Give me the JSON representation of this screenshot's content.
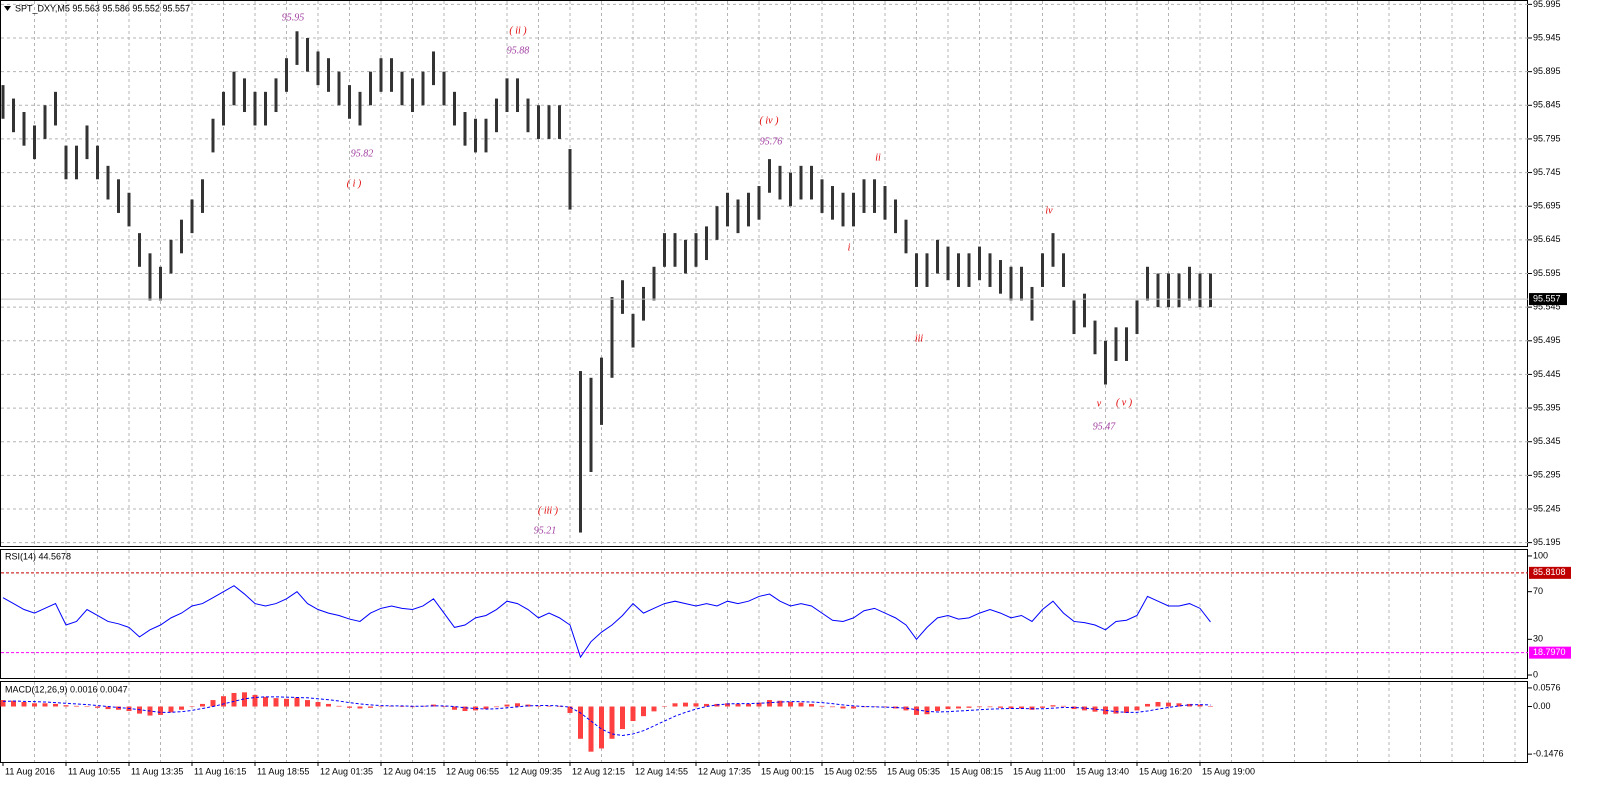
{
  "chart_data": [
    {
      "type": "ohlc",
      "title": "SPT_DXY,M5  95.563 95.586 95.552 95.557",
      "color": "#333333",
      "grid": true,
      "ylim": [
        95.19,
        96.0
      ],
      "yticks": [
        95.995,
        95.945,
        95.895,
        95.845,
        95.795,
        95.745,
        95.695,
        95.645,
        95.595,
        95.545,
        95.495,
        95.445,
        95.395,
        95.345,
        95.295,
        95.245,
        95.195
      ],
      "current_price": 95.557,
      "categories": [
        "11 Aug 2016",
        null,
        null,
        null,
        null,
        null,
        "11 Aug 10:55",
        null,
        null,
        null,
        null,
        null,
        "11 Aug 13:35",
        null,
        null,
        null,
        null,
        null,
        "11 Aug 16:15",
        null,
        null,
        null,
        null,
        null,
        "11 Aug 18:55",
        null,
        null,
        null,
        null,
        null,
        "12 Aug 01:35",
        null,
        null,
        null,
        null,
        null,
        "12 Aug 04:15",
        null,
        null,
        null,
        null,
        null,
        "12 Aug 06:55",
        null,
        null,
        null,
        null,
        null,
        "12 Aug 09:35",
        null,
        null,
        null,
        null,
        null,
        "12 Aug 12:15",
        null,
        null,
        null,
        null,
        null,
        "12 Aug 14:55",
        null,
        null,
        null,
        null,
        null,
        "12 Aug 17:35",
        null,
        null,
        null,
        null,
        null,
        "15 Aug 00:15",
        null,
        null,
        null,
        null,
        null,
        "15 Aug 02:55",
        null,
        null,
        null,
        null,
        null,
        "15 Aug 05:35",
        null,
        null,
        null,
        null,
        null,
        "15 Aug 08:15",
        null,
        null,
        null,
        null,
        null,
        "15 Aug 11:00",
        null,
        null,
        null,
        null,
        null,
        "15 Aug 13:40",
        null,
        null,
        null,
        null,
        null,
        "15 Aug 16:20",
        null,
        null,
        null,
        null,
        null,
        "15 Aug 19:00",
        null
      ],
      "high": [
        95.875,
        95.855,
        95.835,
        95.815,
        95.845,
        95.865,
        95.785,
        95.785,
        95.815,
        95.785,
        95.755,
        95.735,
        95.715,
        95.655,
        95.625,
        95.605,
        95.645,
        95.675,
        95.705,
        95.735,
        95.825,
        95.865,
        95.895,
        95.885,
        95.865,
        95.865,
        95.885,
        95.915,
        95.955,
        95.945,
        95.925,
        95.915,
        95.895,
        95.875,
        95.865,
        95.895,
        95.915,
        95.915,
        95.895,
        95.885,
        95.895,
        95.925,
        95.895,
        95.865,
        95.835,
        95.825,
        95.825,
        95.855,
        95.885,
        95.885,
        95.855,
        95.845,
        95.845,
        95.845,
        95.78,
        95.45,
        95.44,
        95.47,
        95.56,
        95.585,
        95.535,
        95.575,
        95.605,
        95.655,
        95.655,
        95.645,
        95.655,
        95.665,
        95.695,
        95.715,
        95.705,
        95.715,
        95.725,
        95.765,
        95.755,
        95.745,
        95.755,
        95.755,
        95.735,
        95.725,
        95.715,
        95.715,
        95.735,
        95.735,
        95.725,
        95.705,
        95.675,
        95.625,
        95.625,
        95.645,
        95.635,
        95.625,
        95.625,
        95.635,
        95.625,
        95.615,
        95.605,
        95.605,
        95.575,
        95.625,
        95.655,
        95.625,
        95.555,
        95.565,
        95.525,
        95.495,
        95.515,
        95.515,
        95.555,
        95.605,
        95.595,
        95.595,
        95.595,
        95.605,
        95.595,
        95.595
      ],
      "low": [
        95.825,
        95.805,
        95.785,
        95.765,
        95.795,
        95.815,
        95.735,
        95.735,
        95.765,
        95.735,
        95.705,
        95.685,
        95.665,
        95.605,
        95.555,
        95.555,
        95.595,
        95.625,
        95.655,
        95.685,
        95.775,
        95.815,
        95.845,
        95.835,
        95.815,
        95.815,
        95.835,
        95.865,
        95.905,
        95.895,
        95.875,
        95.865,
        95.845,
        95.825,
        95.815,
        95.845,
        95.865,
        95.865,
        95.845,
        95.835,
        95.845,
        95.875,
        95.845,
        95.815,
        95.785,
        95.775,
        95.775,
        95.805,
        95.835,
        95.835,
        95.805,
        95.795,
        95.795,
        95.795,
        95.69,
        95.21,
        95.3,
        95.37,
        95.44,
        95.535,
        95.485,
        95.525,
        95.555,
        95.605,
        95.605,
        95.595,
        95.605,
        95.615,
        95.645,
        95.665,
        95.655,
        95.665,
        95.675,
        95.715,
        95.705,
        95.695,
        95.705,
        95.705,
        95.685,
        95.675,
        95.665,
        95.665,
        95.685,
        95.685,
        95.675,
        95.655,
        95.625,
        95.575,
        95.575,
        95.595,
        95.585,
        95.575,
        95.575,
        95.585,
        95.575,
        95.565,
        95.555,
        95.555,
        95.525,
        95.575,
        95.605,
        95.575,
        95.505,
        95.515,
        95.475,
        95.43,
        95.465,
        95.465,
        95.505,
        95.555,
        95.545,
        95.545,
        95.545,
        95.555,
        95.545,
        95.545
      ],
      "annotations": [
        {
          "text": "95.95",
          "color": "#a03ca0"
        },
        {
          "text": "( ii )",
          "color": "#e00000"
        },
        {
          "text": "95.88",
          "color": "#a03ca0"
        },
        {
          "text": "95.82",
          "color": "#a03ca0"
        },
        {
          "text": "( i )",
          "color": "#e00000"
        },
        {
          "text": "( iv )",
          "color": "#e00000"
        },
        {
          "text": "95.76",
          "color": "#a03ca0"
        },
        {
          "text": "ii",
          "color": "#e00000"
        },
        {
          "text": "i",
          "color": "#e00000"
        },
        {
          "text": "iv",
          "color": "#e00000"
        },
        {
          "text": "iii",
          "color": "#e00000"
        },
        {
          "text": "v",
          "color": "#e00000"
        },
        {
          "text": "( v )",
          "color": "#e00000"
        },
        {
          "text": "95.47",
          "color": "#a03ca0"
        },
        {
          "text": "( iii )",
          "color": "#e00000"
        },
        {
          "text": "95.21",
          "color": "#a03ca0"
        }
      ]
    },
    {
      "type": "line",
      "title": "RSI(14) 44.5678",
      "color": "#0000ff",
      "ylim": [
        -2.5,
        105
      ],
      "yticks": [
        100,
        70,
        30,
        0
      ],
      "levels": [
        85.8108,
        {
          "value": 18.797,
          "label": "18.7970"
        }
      ],
      "level_colors": [
        "#c00000",
        "#ff00ff"
      ],
      "values": [
        65,
        60,
        55,
        52,
        56,
        60,
        42,
        45,
        55,
        50,
        45,
        43,
        40,
        32,
        38,
        42,
        48,
        52,
        58,
        60,
        65,
        70,
        75,
        68,
        60,
        58,
        60,
        64,
        70,
        60,
        55,
        52,
        50,
        47,
        45,
        52,
        56,
        58,
        56,
        55,
        58,
        64,
        52,
        40,
        42,
        48,
        50,
        55,
        62,
        60,
        55,
        48,
        52,
        48,
        42,
        15,
        28,
        36,
        42,
        50,
        60,
        52,
        56,
        60,
        62,
        60,
        58,
        60,
        58,
        62,
        60,
        62,
        66,
        68,
        62,
        58,
        60,
        58,
        52,
        46,
        45,
        48,
        54,
        56,
        52,
        48,
        42,
        30,
        40,
        48,
        50,
        47,
        48,
        52,
        55,
        52,
        48,
        50,
        45,
        55,
        62,
        52,
        45,
        44,
        42,
        38,
        45,
        46,
        50,
        66,
        62,
        58,
        58,
        60,
        56,
        44.57
      ]
    },
    {
      "type": "macd",
      "title": "MACD(12,26,9) 0.0016 0.0047",
      "color": "#ff4040",
      "signal_color": "#0000ff",
      "ylim": [
        -0.172,
        0.076
      ],
      "yticks": [
        0.0576,
        {
          "value": 0,
          "label": "0.00"
        },
        -0.1476
      ],
      "values": [
        0.02,
        0.018,
        0.014,
        0.01,
        0.01,
        0.008,
        0.004,
        0.002,
        0,
        -0.004,
        -0.008,
        -0.01,
        -0.014,
        -0.022,
        -0.028,
        -0.026,
        -0.018,
        -0.01,
        0,
        0.008,
        0.02,
        0.032,
        0.042,
        0.044,
        0.036,
        0.03,
        0.026,
        0.024,
        0.028,
        0.02,
        0.014,
        0.008,
        0.002,
        -0.004,
        -0.006,
        -0.004,
        0,
        0.002,
        0,
        -0.002,
        0.002,
        0.006,
        0,
        -0.01,
        -0.014,
        -0.012,
        -0.008,
        -0.002,
        0.006,
        0.01,
        0.006,
        0.002,
        0.002,
        0,
        -0.02,
        -0.1,
        -0.14,
        -0.13,
        -0.1,
        -0.07,
        -0.045,
        -0.03,
        -0.015,
        0,
        0.01,
        0.012,
        0.01,
        0.008,
        0.008,
        0.01,
        0.008,
        0.008,
        0.012,
        0.02,
        0.018,
        0.014,
        0.012,
        0.008,
        0.002,
        -0.002,
        -0.006,
        -0.006,
        -0.002,
        0,
        -0.002,
        -0.006,
        -0.012,
        -0.026,
        -0.024,
        -0.014,
        -0.008,
        -0.006,
        -0.004,
        -0.002,
        -0.002,
        -0.004,
        -0.006,
        -0.006,
        -0.01,
        -0.004,
        0.004,
        0.002,
        -0.008,
        -0.012,
        -0.016,
        -0.024,
        -0.022,
        -0.02,
        -0.012,
        0.008,
        0.014,
        0.012,
        0.01,
        0.008,
        0.006,
        0.0016
      ],
      "signal": [
        0.016,
        0.017,
        0.016,
        0.015,
        0.014,
        0.012,
        0.01,
        0.008,
        0.006,
        0.003,
        0,
        -0.003,
        -0.006,
        -0.01,
        -0.014,
        -0.018,
        -0.018,
        -0.016,
        -0.012,
        -0.006,
        0,
        0.008,
        0.016,
        0.024,
        0.028,
        0.03,
        0.03,
        0.029,
        0.028,
        0.027,
        0.024,
        0.021,
        0.017,
        0.012,
        0.008,
        0.005,
        0.003,
        0.002,
        0.002,
        0.001,
        0.001,
        0.002,
        0.002,
        0,
        -0.004,
        -0.006,
        -0.008,
        -0.007,
        -0.004,
        -0.001,
        0.002,
        0.003,
        0.003,
        0.002,
        -0.002,
        -0.02,
        -0.045,
        -0.07,
        -0.085,
        -0.09,
        -0.085,
        -0.075,
        -0.06,
        -0.045,
        -0.03,
        -0.018,
        -0.008,
        0,
        0.005,
        0.008,
        0.009,
        0.009,
        0.01,
        0.012,
        0.014,
        0.015,
        0.015,
        0.014,
        0.012,
        0.009,
        0.005,
        0.002,
        0,
        -0.001,
        -0.002,
        -0.003,
        -0.005,
        -0.01,
        -0.015,
        -0.017,
        -0.016,
        -0.014,
        -0.012,
        -0.01,
        -0.008,
        -0.007,
        -0.006,
        -0.006,
        -0.007,
        -0.007,
        -0.005,
        -0.003,
        -0.003,
        -0.005,
        -0.008,
        -0.012,
        -0.016,
        -0.018,
        -0.018,
        -0.014,
        -0.008,
        -0.003,
        0.002,
        0.005,
        0.006,
        0.0047
      ]
    }
  ]
}
